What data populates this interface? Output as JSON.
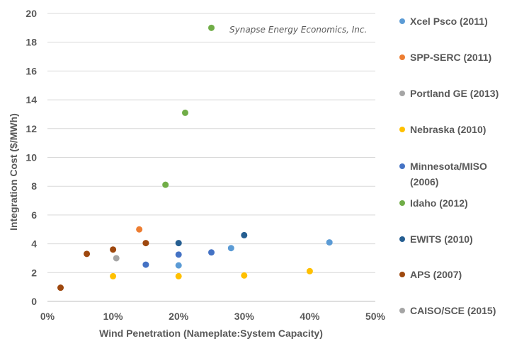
{
  "chart_data": {
    "type": "scatter",
    "title": "",
    "annotation": "Synapse Energy Economics, Inc.",
    "xlabel": "Wind Penetration (Nameplate:System Capacity)",
    "ylabel": "Integration Cost ($/MWh)",
    "xlim": [
      0,
      0.5
    ],
    "ylim": [
      0,
      20
    ],
    "x_ticks": [
      0,
      0.1,
      0.2,
      0.3,
      0.4,
      0.5
    ],
    "x_tick_labels": [
      "0%",
      "10%",
      "20%",
      "30%",
      "40%",
      "50%"
    ],
    "y_ticks": [
      0,
      2,
      4,
      6,
      8,
      10,
      12,
      14,
      16,
      18,
      20
    ],
    "y_tick_labels": [
      "0",
      "2",
      "4",
      "6",
      "8",
      "10",
      "12",
      "14",
      "16",
      "18",
      "20"
    ],
    "grid": "horizontal",
    "legend_position": "right",
    "series": [
      {
        "name": "Xcel Psco (2011)",
        "color": "#5B9BD5",
        "points": [
          [
            0.2,
            2.5
          ],
          [
            0.28,
            3.7
          ],
          [
            0.43,
            4.1
          ]
        ]
      },
      {
        "name": "SPP-SERC (2011)",
        "color": "#ED7D31",
        "points": [
          [
            0.14,
            5.0
          ]
        ]
      },
      {
        "name": "Portland GE (2013)",
        "color": "#A5A5A5",
        "points": [
          [
            0.105,
            3.0
          ]
        ]
      },
      {
        "name": "Nebraska (2010)",
        "color": "#FFC000",
        "points": [
          [
            0.1,
            1.75
          ],
          [
            0.2,
            1.75
          ],
          [
            0.3,
            1.8
          ],
          [
            0.4,
            2.1
          ]
        ]
      },
      {
        "name": "Minnesota/MISO (2006)",
        "label_lines": [
          "Minnesota/MISO",
          "(2006)"
        ],
        "color": "#4472C4",
        "points": [
          [
            0.15,
            2.55
          ],
          [
            0.2,
            3.25
          ],
          [
            0.25,
            3.4
          ]
        ]
      },
      {
        "name": "Idaho (2012)",
        "color": "#70AD47",
        "points": [
          [
            0.18,
            8.1
          ],
          [
            0.21,
            13.1
          ],
          [
            0.25,
            19.0
          ]
        ]
      },
      {
        "name": "EWITS (2010)",
        "color": "#255E91",
        "points": [
          [
            0.2,
            4.05
          ],
          [
            0.3,
            4.6
          ]
        ]
      },
      {
        "name": "APS (2007)",
        "color": "#9E480E",
        "points": [
          [
            0.02,
            0.95
          ],
          [
            0.06,
            3.3
          ],
          [
            0.1,
            3.6
          ],
          [
            0.15,
            4.05
          ]
        ]
      },
      {
        "name": "CAISO/SCE (2015)",
        "color": "#A5A5A5",
        "points": []
      }
    ]
  }
}
